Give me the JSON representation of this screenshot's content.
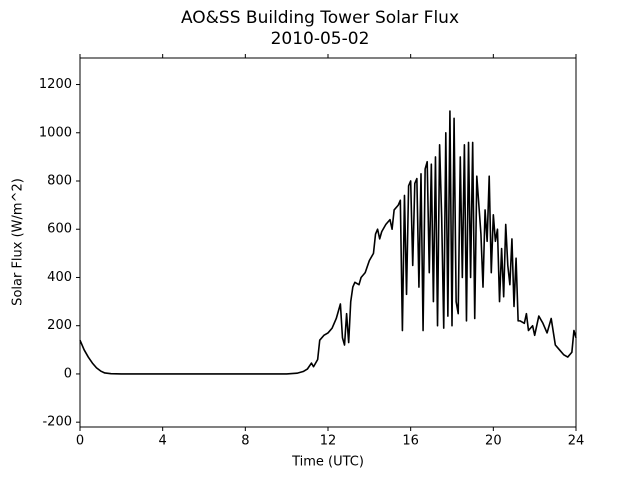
{
  "chart_data": {
    "type": "line",
    "title": "AO&SS Building Tower Solar Flux",
    "subtitle": "2010-05-02",
    "x_label": "Time (UTC)",
    "y_label": "Solar Flux (W/m^2)",
    "xlim": [
      0,
      24
    ],
    "xticks": [
      0,
      4,
      8,
      12,
      16,
      20,
      24
    ],
    "ylim": [
      -220,
      1310
    ],
    "yticks": [
      -200,
      0,
      200,
      400,
      600,
      800,
      1000,
      1200
    ],
    "grid": false,
    "series": [
      {
        "color": "#000000",
        "x": [
          0,
          0.2,
          0.4,
          0.6,
          0.8,
          1.0,
          1.2,
          1.5,
          2,
          4,
          6,
          8,
          10,
          10.5,
          10.8,
          11,
          11.2,
          11.3,
          11.5,
          11.6,
          11.8,
          12,
          12.2,
          12.4,
          12.6,
          12.7,
          12.8,
          12.9,
          13,
          13.1,
          13.2,
          13.3,
          13.5,
          13.6,
          13.8,
          14,
          14.2,
          14.3,
          14.4,
          14.5,
          14.6,
          14.8,
          15,
          15.1,
          15.2,
          15.4,
          15.5,
          15.6,
          15.7,
          15.8,
          15.9,
          16,
          16.1,
          16.2,
          16.3,
          16.4,
          16.5,
          16.6,
          16.7,
          16.8,
          16.9,
          17,
          17.1,
          17.2,
          17.3,
          17.4,
          17.5,
          17.6,
          17.7,
          17.8,
          17.9,
          18,
          18.1,
          18.2,
          18.3,
          18.4,
          18.5,
          18.6,
          18.7,
          18.8,
          18.9,
          19,
          19.1,
          19.2,
          19.3,
          19.4,
          19.5,
          19.6,
          19.7,
          19.8,
          19.9,
          20,
          20.1,
          20.2,
          20.3,
          20.4,
          20.5,
          20.6,
          20.7,
          20.8,
          20.9,
          21,
          21.1,
          21.2,
          21.3,
          21.5,
          21.6,
          21.7,
          21.9,
          22,
          22.2,
          22.4,
          22.6,
          22.8,
          23,
          23.2,
          23.4,
          23.6,
          23.8,
          23.9,
          24
        ],
        "values": [
          140,
          100,
          70,
          45,
          25,
          12,
          4,
          1,
          0,
          0,
          0,
          0,
          0,
          3,
          10,
          20,
          45,
          30,
          60,
          140,
          160,
          170,
          190,
          230,
          290,
          150,
          120,
          250,
          130,
          300,
          360,
          380,
          370,
          400,
          420,
          470,
          500,
          580,
          600,
          560,
          590,
          620,
          640,
          600,
          680,
          700,
          720,
          180,
          740,
          330,
          780,
          800,
          450,
          790,
          810,
          360,
          830,
          180,
          850,
          880,
          420,
          870,
          300,
          900,
          200,
          950,
          650,
          190,
          1000,
          240,
          1090,
          200,
          1060,
          300,
          250,
          900,
          400,
          950,
          220,
          960,
          400,
          960,
          230,
          820,
          700,
          580,
          360,
          680,
          550,
          820,
          420,
          660,
          550,
          600,
          300,
          520,
          320,
          620,
          450,
          370,
          560,
          280,
          480,
          220,
          220,
          210,
          250,
          180,
          200,
          160,
          240,
          210,
          170,
          230,
          120,
          100,
          80,
          70,
          90,
          180,
          150
        ]
      }
    ]
  }
}
